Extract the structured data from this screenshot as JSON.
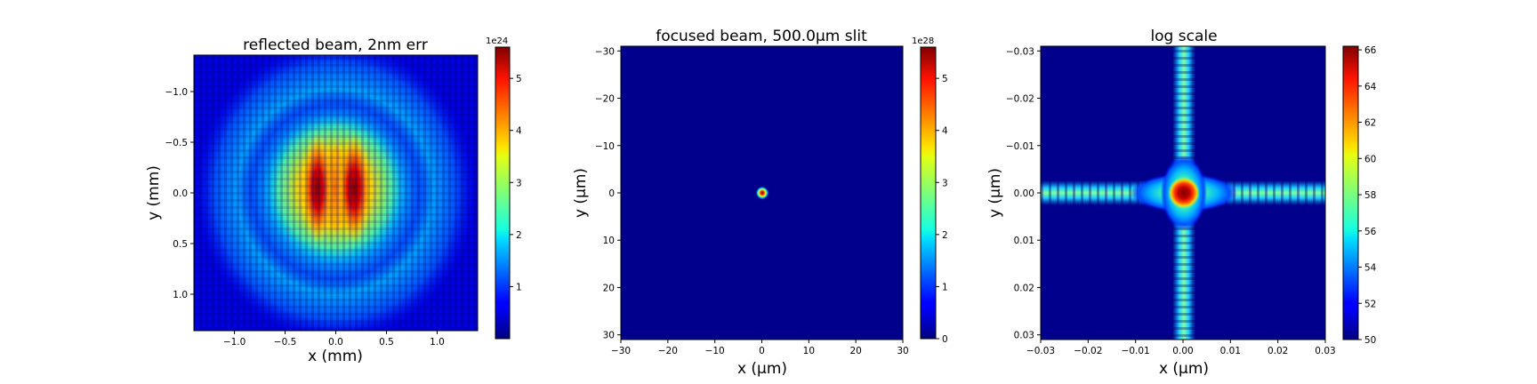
{
  "chart_data": [
    {
      "type": "heatmap",
      "title": "reflected beam, 2nm err",
      "xlabel": "x (mm)",
      "ylabel": "y (mm)",
      "xlim": [
        -1.4,
        1.4
      ],
      "ylim": [
        1.36,
        -1.36
      ],
      "xticks": [
        "−1.0",
        "−0.5",
        "0.0",
        "0.5",
        "1.0"
      ],
      "yticks": [
        "−1.0",
        "−0.5",
        "0.0",
        "0.5",
        "1.0"
      ],
      "colorbar": {
        "exponent": "1e24",
        "ticks": [
          "1",
          "2",
          "3",
          "4",
          "5"
        ],
        "range": [
          0.0,
          5.6
        ]
      },
      "colormap": "jet"
    },
    {
      "type": "heatmap",
      "title": "focused beam, 500.0μm slit",
      "xlabel": "x (μm)",
      "ylabel": "y (μm)",
      "xlim": [
        -30,
        30
      ],
      "ylim": [
        31,
        -31
      ],
      "xticks": [
        "−30",
        "−20",
        "−10",
        "0",
        "10",
        "20",
        "30"
      ],
      "yticks": [
        "−30",
        "−20",
        "−10",
        "0",
        "10",
        "20",
        "30"
      ],
      "colorbar": {
        "exponent": "1e28",
        "ticks": [
          "0",
          "1",
          "2",
          "3",
          "4",
          "5"
        ],
        "range": [
          0.0,
          5.6
        ]
      },
      "colormap": "jet"
    },
    {
      "type": "heatmap",
      "title": "log scale",
      "xlabel": "x (μm)",
      "ylabel": "y (μm)",
      "xlim": [
        -0.03,
        0.03
      ],
      "ylim": [
        0.031,
        -0.031
      ],
      "xticks": [
        "−0.03",
        "−0.02",
        "−0.01",
        "0.00",
        "0.01",
        "0.02",
        "0.03"
      ],
      "yticks": [
        "−0.03",
        "−0.02",
        "−0.01",
        "0.00",
        "0.01",
        "0.02",
        "0.03"
      ],
      "colorbar": {
        "exponent": "",
        "ticks": [
          "50",
          "52",
          "54",
          "56",
          "58",
          "60",
          "62",
          "64",
          "66"
        ],
        "range": [
          50,
          66.2
        ]
      },
      "colormap": "jet"
    }
  ]
}
